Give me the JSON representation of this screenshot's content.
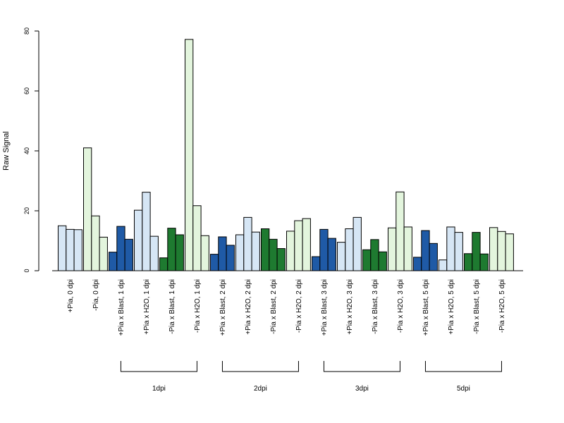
{
  "chart_data": {
    "type": "bar",
    "ylabel": "Raw Signal",
    "ylim": [
      0,
      80
    ],
    "yticks": [
      0,
      20,
      40,
      60,
      80
    ],
    "grid": false,
    "colors": {
      "light_blue": "#d6e6f5",
      "dark_blue": "#1f5aa6",
      "light_green": "#e3f5dd",
      "dark_green": "#1e7a30",
      "border": "#000000"
    },
    "categories": [
      {
        "label": "+Pia, 0 dpi",
        "color": "light_blue",
        "values": [
          15,
          13.8,
          13.7
        ]
      },
      {
        "label": "-Pia, 0 dpi",
        "color": "light_green",
        "values": [
          41,
          18.3,
          11.2
        ]
      },
      {
        "label": "+Pia x Blast, 1 dpi",
        "color": "dark_blue",
        "values": [
          6.2,
          14.8,
          10.5
        ]
      },
      {
        "label": "+Pia x H2O, 1 dpi",
        "color": "light_blue",
        "values": [
          20.2,
          26.2,
          11.5
        ]
      },
      {
        "label": "-Pia x Blast, 1 dpi",
        "color": "dark_green",
        "values": [
          4.3,
          14.2,
          12
        ]
      },
      {
        "label": "-Pia x H2O, 1 dpi",
        "color": "light_green",
        "values": [
          77.2,
          21.7,
          11.7
        ]
      },
      {
        "label": "+Pia x Blast, 2 dpi",
        "color": "dark_blue",
        "values": [
          5.5,
          11.3,
          8.5
        ]
      },
      {
        "label": "+Pia x H2O, 2 dpi",
        "color": "light_blue",
        "values": [
          12,
          17.8,
          12.9
        ]
      },
      {
        "label": "-Pia x Blast, 2 dpi",
        "color": "dark_green",
        "values": [
          14,
          10.5,
          7.4
        ]
      },
      {
        "label": "-Pia x H2O, 2 dpi",
        "color": "light_green",
        "values": [
          13.2,
          16.7,
          17.4
        ]
      },
      {
        "label": "+Pia x Blast, 3 dpi",
        "color": "dark_blue",
        "values": [
          4.7,
          13.8,
          10.8
        ]
      },
      {
        "label": "+Pia x H2O, 3 dpi",
        "color": "light_blue",
        "values": [
          9.5,
          14,
          17.8
        ]
      },
      {
        "label": "-Pia x Blast, 3 dpi",
        "color": "dark_green",
        "values": [
          7,
          10.4,
          6.3
        ]
      },
      {
        "label": "-Pia x H2O, 3 dpi",
        "color": "light_green",
        "values": [
          14.3,
          26.3,
          14.6
        ]
      },
      {
        "label": "+Pia x Blast, 5 dpi",
        "color": "dark_blue",
        "values": [
          4.5,
          13.4,
          9.1
        ]
      },
      {
        "label": "+Pia x H2O, 5 dpi",
        "color": "light_blue",
        "values": [
          3.6,
          14.6,
          12.8
        ]
      },
      {
        "label": "-Pia x Blast, 5 dpi",
        "color": "dark_green",
        "values": [
          5.7,
          12.8,
          5.6
        ]
      },
      {
        "label": "-Pia x H2O, 5 dpi",
        "color": "light_green",
        "values": [
          14.4,
          13.1,
          12.3
        ]
      }
    ],
    "groups": [
      {
        "label": "1dpi",
        "categories": [
          2,
          5
        ]
      },
      {
        "label": "2dpi",
        "categories": [
          6,
          9
        ]
      },
      {
        "label": "3dpi",
        "categories": [
          10,
          13
        ]
      },
      {
        "label": "5dpi",
        "categories": [
          14,
          17
        ]
      }
    ]
  }
}
